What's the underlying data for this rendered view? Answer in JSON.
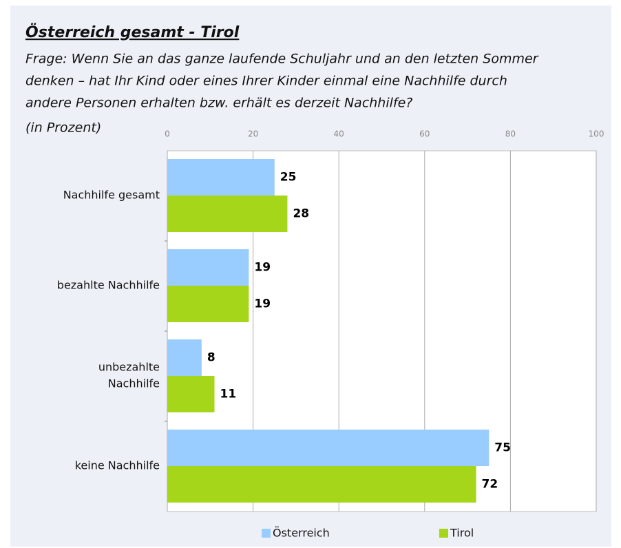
{
  "chart_data": {
    "type": "bar",
    "orientation": "horizontal",
    "title": "Österreich gesamt - Tirol",
    "subtitle": [
      "Frage: Wenn Sie an das ganze laufende Schuljahr und an den letzten Sommer",
      "denken – hat Ihr Kind oder eines Ihrer Kinder einmal eine Nachhilfe durch",
      "andere Personen erhalten bzw. erhält es derzeit Nachhilfe?",
      "(in Prozent)"
    ],
    "categories": [
      [
        "Nachhilfe gesamt"
      ],
      [
        "bezahlte Nachhilfe"
      ],
      [
        "unbezahlte",
        "Nachhilfe"
      ],
      [
        "keine Nachhilfe"
      ]
    ],
    "series": [
      {
        "name": "Österreich",
        "color": "#99ccff",
        "values": [
          25,
          19,
          8,
          75
        ]
      },
      {
        "name": "Tirol",
        "color": "#a6d619",
        "values": [
          28,
          19,
          11,
          72
        ]
      }
    ],
    "xlim": [
      0,
      100
    ],
    "xticks": [
      0,
      20,
      40,
      60,
      80,
      100
    ],
    "grid": true,
    "legend": "bottom"
  }
}
